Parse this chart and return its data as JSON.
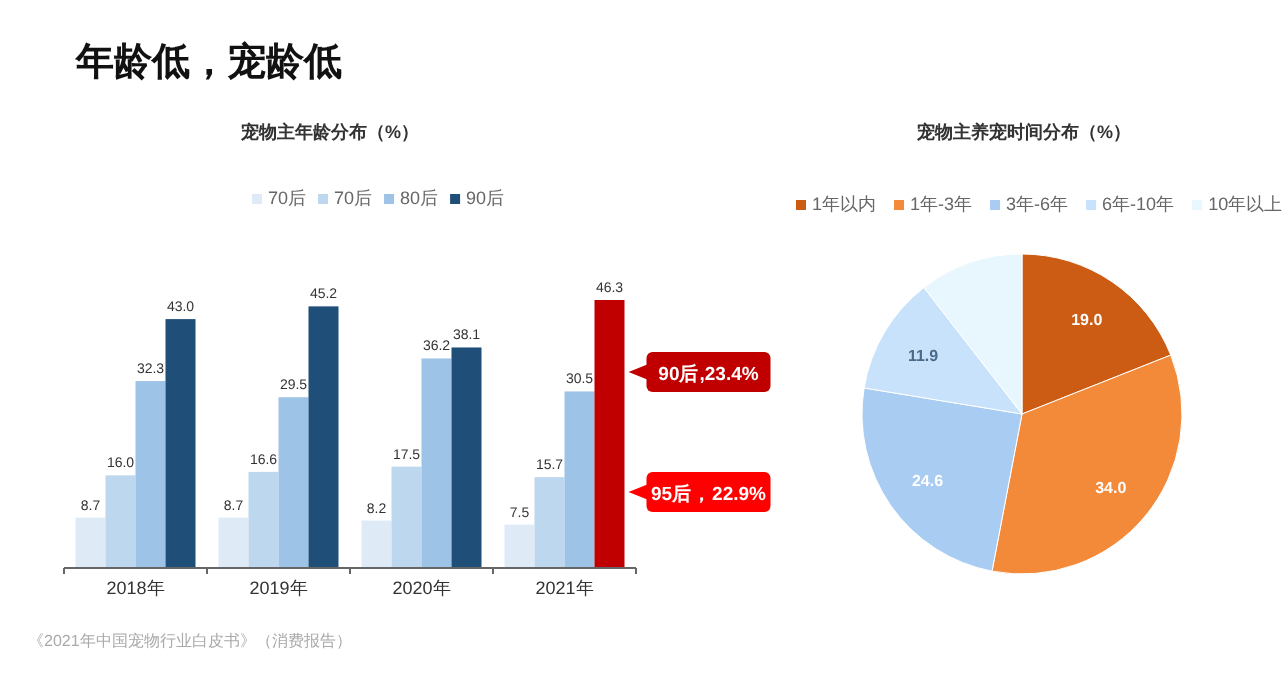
{
  "chart_data": [
    {
      "type": "bar",
      "title": "宠物主年龄分布（%）",
      "categories": [
        "2018年",
        "2019年",
        "2020年",
        "2021年"
      ],
      "legend": "top",
      "series": [
        {
          "name": "70后",
          "color": "#deebf7",
          "values": [
            8.7,
            8.7,
            8.2,
            7.5
          ],
          "value_labels": [
            "8.7",
            "8.7",
            "8.2",
            "7.5"
          ]
        },
        {
          "name": "70后",
          "color": "#bdd7ee",
          "values": [
            16.0,
            16.6,
            17.5,
            15.7
          ],
          "value_labels": [
            "16.0",
            "16.6",
            "17.5",
            "15.7"
          ]
        },
        {
          "name": "80后",
          "color": "#9dc3e6",
          "values": [
            32.3,
            29.5,
            36.2,
            30.5
          ],
          "value_labels": [
            "32.3",
            "29.5",
            "36.2",
            "30.5"
          ]
        },
        {
          "name": "90后",
          "color": "#1f4e79",
          "colors": [
            "#1f4e79",
            "#1f4e79",
            "#1f4e79",
            "#c00000"
          ],
          "values": [
            43.0,
            45.2,
            38.1,
            46.3
          ],
          "value_labels": [
            "43.0",
            "45.2",
            "38.1",
            "46.3"
          ]
        }
      ],
      "annotations": [
        "年龄低，宠龄低",
        "90后,23.4%",
        "95后，22.9%",
        "《2021年中国宠物行业白皮书》（消费报告）"
      ]
    },
    {
      "type": "pie",
      "title": "宠物主养宠时间分布（%）",
      "legend": "top",
      "categories": [
        "1年以内",
        "1年-3年",
        "3年-6年",
        "6年-10年",
        "10年以上"
      ],
      "values": [
        19.0,
        34.0,
        24.6,
        11.9,
        10.5
      ],
      "value_labels": [
        "19.0",
        "34.0",
        "24.6",
        "11.9",
        null
      ],
      "colors": [
        "#cc5c14",
        "#f28a3a",
        "#a9cdf2",
        "#c9e2fb",
        "#e8f6fd"
      ]
    }
  ]
}
